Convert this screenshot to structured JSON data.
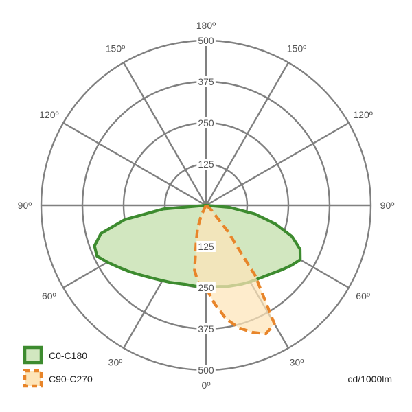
{
  "chart_data": {
    "type": "polar",
    "unit_label": "cd/1000lm",
    "radial_ticks": [
      125,
      250,
      375,
      500
    ],
    "rlim": [
      0,
      500
    ],
    "grid": true,
    "legend_position": "bottom-left",
    "angle_labels": [
      {
        "label": "0º",
        "angle": 0
      },
      {
        "label": "30º",
        "angle": 30
      },
      {
        "label": "60º",
        "angle": 60
      },
      {
        "label": "90º",
        "angle": 90
      },
      {
        "label": "120º",
        "angle": 120
      },
      {
        "label": "150º",
        "angle": 150
      },
      {
        "label": "180º",
        "angle": 180
      },
      {
        "label": "150º",
        "angle": -150
      },
      {
        "label": "120º",
        "angle": -120
      },
      {
        "label": "90º",
        "angle": -90
      },
      {
        "label": "60º",
        "angle": -60
      },
      {
        "label": "30º",
        "angle": -30
      }
    ],
    "series": [
      {
        "name": "C0-C180",
        "stroke": "#3d8b2f",
        "fill": "#d2e7c0",
        "dashed": false,
        "angles": [
          0,
          5,
          10,
          15,
          20,
          25,
          30,
          35,
          40,
          45,
          50,
          55,
          60,
          65,
          70,
          75,
          80,
          85,
          90,
          -5,
          -10,
          -15,
          -20,
          -25,
          -30,
          -35,
          -40,
          -45,
          -50,
          -55,
          -60,
          -65,
          -70,
          -75,
          -80,
          -85,
          -90
        ],
        "values": [
          250,
          248,
          250,
          255,
          258,
          263,
          268,
          273,
          280,
          290,
          303,
          317,
          330,
          315,
          278,
          218,
          150,
          70,
          0,
          248,
          247,
          248,
          252,
          258,
          264,
          272,
          282,
          295,
          310,
          326,
          345,
          365,
          360,
          330,
          250,
          130,
          0
        ]
      },
      {
        "name": "C90-C270",
        "stroke": "#e8852a",
        "fill": "#fde5b9",
        "dashed": true,
        "angles": [
          0,
          5,
          10,
          15,
          20,
          25,
          30,
          35,
          40,
          45,
          50,
          55,
          60,
          -5,
          -10,
          -15,
          -20,
          -25,
          -30
        ],
        "values": [
          250,
          300,
          350,
          385,
          410,
          430,
          415,
          260,
          100,
          30,
          18,
          5,
          0,
          245,
          200,
          115,
          75,
          35,
          0
        ]
      }
    ]
  }
}
